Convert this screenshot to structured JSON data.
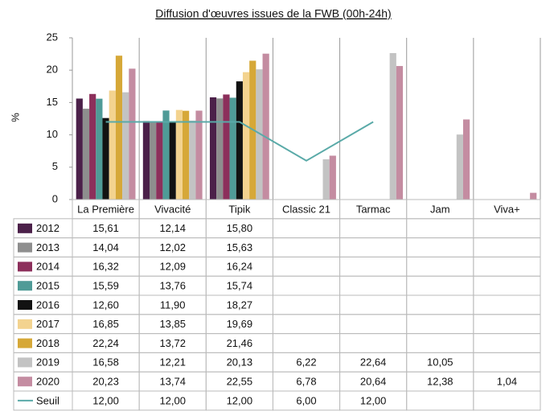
{
  "chart_data": {
    "type": "bar",
    "title": "Diffusion d'œuvres issues de la FWB (00h-24h)",
    "y_label": "%",
    "categories": [
      "La Première",
      "Vivacité",
      "Tipik",
      "Classic 21",
      "Tarmac",
      "Jam",
      "Viva+"
    ],
    "ylim": [
      0,
      25
    ],
    "yticks": [
      0,
      5,
      10,
      15,
      20,
      25
    ],
    "grid": false,
    "series": [
      {
        "name": "2012",
        "color": "#4b2049",
        "values": [
          15.61,
          12.14,
          15.8,
          null,
          null,
          null,
          null
        ],
        "value_labels": [
          "15,61",
          "12,14",
          "15,80",
          null,
          null,
          null,
          null
        ]
      },
      {
        "name": "2013",
        "color": "#8e8e8e",
        "values": [
          14.04,
          12.02,
          15.63,
          null,
          null,
          null,
          null
        ],
        "value_labels": [
          "14,04",
          "12,02",
          "15,63",
          null,
          null,
          null,
          null
        ]
      },
      {
        "name": "2014",
        "color": "#8c2f5b",
        "values": [
          16.32,
          12.09,
          16.24,
          null,
          null,
          null,
          null
        ],
        "value_labels": [
          "16,32",
          "12,09",
          "16,24",
          null,
          null,
          null,
          null
        ]
      },
      {
        "name": "2015",
        "color": "#4f9b97",
        "values": [
          15.59,
          13.76,
          15.74,
          null,
          null,
          null,
          null
        ],
        "value_labels": [
          "15,59",
          "13,76",
          "15,74",
          null,
          null,
          null,
          null
        ]
      },
      {
        "name": "2016",
        "color": "#121212",
        "values": [
          12.6,
          11.9,
          18.27,
          null,
          null,
          null,
          null
        ],
        "value_labels": [
          "12,60",
          "11,90",
          "18,27",
          null,
          null,
          null,
          null
        ]
      },
      {
        "name": "2017",
        "color": "#f3d38f",
        "values": [
          16.85,
          13.85,
          19.69,
          null,
          null,
          null,
          null
        ],
        "value_labels": [
          "16,85",
          "13,85",
          "19,69",
          null,
          null,
          null,
          null
        ]
      },
      {
        "name": "2018",
        "color": "#d6a838",
        "values": [
          22.24,
          13.72,
          21.46,
          null,
          null,
          null,
          null
        ],
        "value_labels": [
          "22,24",
          "13,72",
          "21,46",
          null,
          null,
          null,
          null
        ]
      },
      {
        "name": "2019",
        "color": "#c3c3c3",
        "values": [
          16.58,
          12.21,
          20.13,
          6.22,
          22.64,
          10.05,
          null
        ],
        "value_labels": [
          "16,58",
          "12,21",
          "20,13",
          "6,22",
          "22,64",
          "10,05",
          null
        ]
      },
      {
        "name": "2020",
        "color": "#c48ca1",
        "values": [
          20.23,
          13.74,
          22.55,
          6.78,
          20.64,
          12.38,
          1.04
        ],
        "value_labels": [
          "20,23",
          "13,74",
          "22,55",
          "6,78",
          "20,64",
          "12,38",
          "1,04"
        ]
      },
      {
        "name": "Seuil",
        "type": "line",
        "color": "#5aaaa8",
        "values": [
          12.0,
          12.0,
          12.0,
          6.0,
          12.0,
          null,
          null
        ],
        "value_labels": [
          "12,00",
          "12,00",
          "12,00",
          "6,00",
          "12,00",
          null,
          null
        ]
      }
    ]
  }
}
